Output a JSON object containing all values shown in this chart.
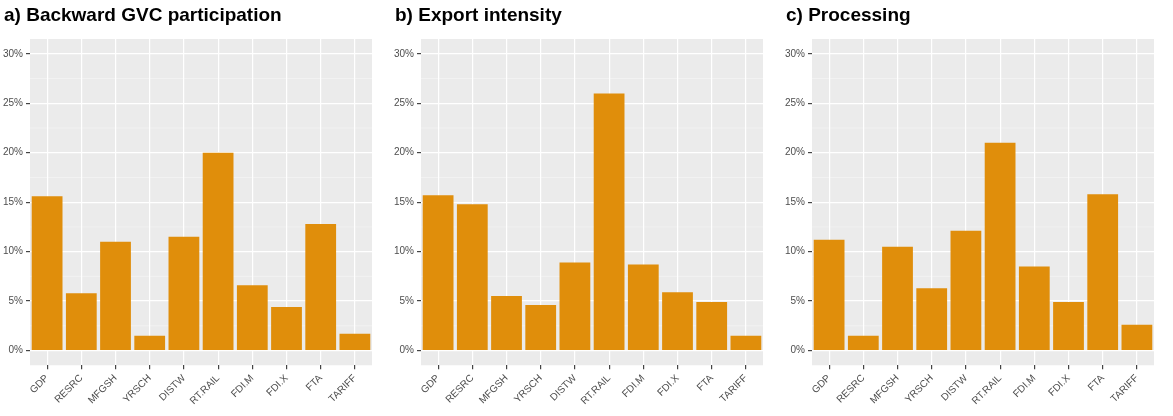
{
  "chart_data": [
    {
      "type": "bar",
      "title": "a) Backward GVC participation",
      "categories": [
        "GDP",
        "RESRC",
        "MFGSH",
        "YRSCH",
        "DISTW",
        "RT.RAIL",
        "FDI.M",
        "FDI.X",
        "FTA",
        "TARIFF"
      ],
      "values": [
        15.6,
        5.8,
        11.0,
        1.5,
        11.5,
        20.0,
        6.6,
        4.4,
        12.8,
        1.7
      ],
      "color": "#e08e0b",
      "ylim": [
        -1.5,
        31.5
      ],
      "yticks": [
        {
          "value": 0,
          "label": "0%"
        },
        {
          "value": 5,
          "label": "5%"
        },
        {
          "value": 10,
          "label": "10%"
        },
        {
          "value": 15,
          "label": "15%"
        },
        {
          "value": 20,
          "label": "20%"
        },
        {
          "value": 25,
          "label": "25%"
        },
        {
          "value": 30,
          "label": "30%"
        }
      ],
      "grid": true
    },
    {
      "type": "bar",
      "title": "b) Export intensity",
      "categories": [
        "GDP",
        "RESRC",
        "MFGSH",
        "YRSCH",
        "DISTW",
        "RT.RAIL",
        "FDI.M",
        "FDI.X",
        "FTA",
        "TARIFF"
      ],
      "values": [
        15.7,
        14.8,
        5.5,
        4.6,
        8.9,
        26.0,
        8.7,
        5.9,
        4.9,
        1.5
      ],
      "color": "#e08e0b",
      "ylim": [
        -1.5,
        31.5
      ],
      "yticks": [
        {
          "value": 0,
          "label": "0%"
        },
        {
          "value": 5,
          "label": "5%"
        },
        {
          "value": 10,
          "label": "10%"
        },
        {
          "value": 15,
          "label": "15%"
        },
        {
          "value": 20,
          "label": "20%"
        },
        {
          "value": 25,
          "label": "25%"
        },
        {
          "value": 30,
          "label": "30%"
        }
      ],
      "grid": true
    },
    {
      "type": "bar",
      "title": "c) Processing",
      "categories": [
        "GDP",
        "RESRC",
        "MFGSH",
        "YRSCH",
        "DISTW",
        "RT.RAIL",
        "FDI.M",
        "FDI.X",
        "FTA",
        "TARIFF"
      ],
      "values": [
        11.2,
        1.5,
        10.5,
        6.3,
        12.1,
        21.0,
        8.5,
        4.9,
        15.8,
        2.6
      ],
      "color": "#e08e0b",
      "ylim": [
        -1.5,
        31.5
      ],
      "yticks": [
        {
          "value": 0,
          "label": "0%"
        },
        {
          "value": 5,
          "label": "5%"
        },
        {
          "value": 10,
          "label": "10%"
        },
        {
          "value": 15,
          "label": "15%"
        },
        {
          "value": 20,
          "label": "20%"
        },
        {
          "value": 25,
          "label": "25%"
        },
        {
          "value": 30,
          "label": "30%"
        }
      ],
      "grid": true
    }
  ]
}
